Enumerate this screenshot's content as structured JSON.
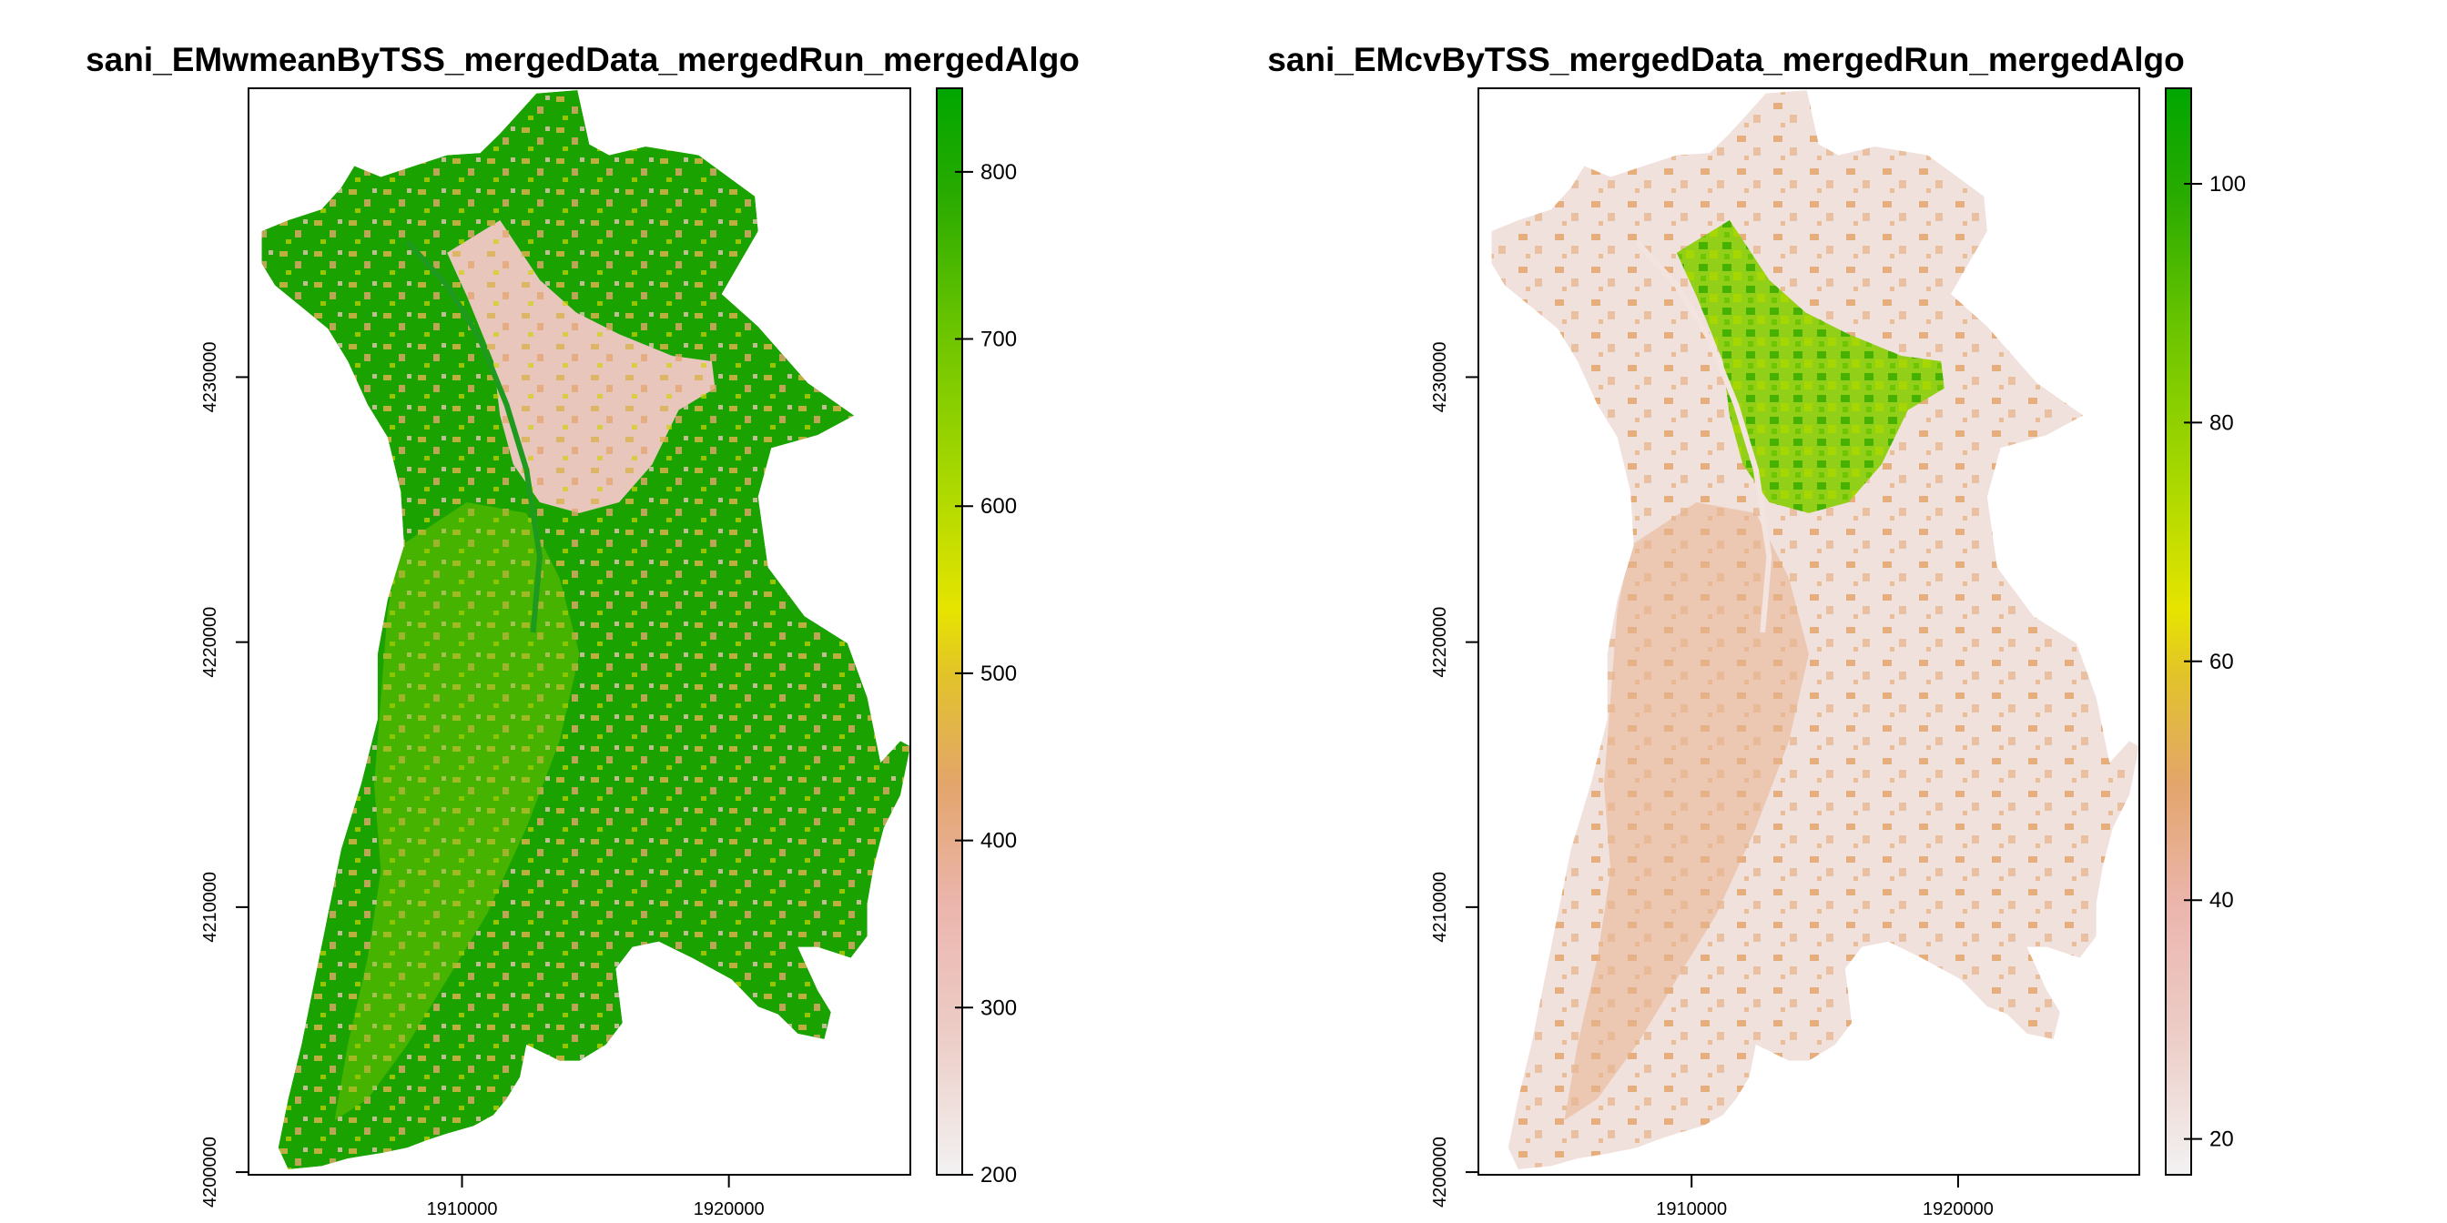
{
  "chart_data": [
    {
      "type": "heatmap",
      "title": "sani_EMwmeanByTSS_mergedData_mergedRun_mergedAlgo",
      "xlabel": "",
      "ylabel": "",
      "x_ticks": [
        1910000,
        1920000
      ],
      "x_tick_labels": [
        "1910000",
        "1920000"
      ],
      "y_ticks": [
        4200000,
        4210000,
        4220000,
        4230000
      ],
      "y_tick_labels": [
        "4200000",
        "4210000",
        "4220000",
        "4230000"
      ],
      "xlim": [
        1902000,
        1926800
      ],
      "ylim": [
        4199900,
        4240900
      ],
      "legend": {
        "placement": "right",
        "range": [
          200,
          850
        ],
        "ticks": [
          200,
          300,
          400,
          500,
          600,
          700,
          800
        ],
        "tick_labels": [
          "200",
          "300",
          "400",
          "500",
          "600",
          "700",
          "800"
        ],
        "colors": [
          "#f2f2f2",
          "#ebb5ad",
          "#e3a56b",
          "#e2c32a",
          "#e6e400",
          "#a8d800",
          "#6ac400",
          "#2aab00",
          "#00a600"
        ]
      },
      "region_fill": "#1aa300"
    },
    {
      "type": "heatmap",
      "title": "sani_EMcvByTSS_mergedData_mergedRun_mergedAlgo",
      "xlabel": "",
      "ylabel": "",
      "x_ticks": [
        1910000,
        1920000
      ],
      "x_tick_labels": [
        "1910000",
        "1920000"
      ],
      "y_ticks": [
        4200000,
        4210000,
        4220000,
        4230000
      ],
      "y_tick_labels": [
        "4200000",
        "4210000",
        "4220000",
        "4230000"
      ],
      "xlim": [
        1902000,
        1926800
      ],
      "ylim": [
        4199900,
        4240900
      ],
      "legend": {
        "placement": "right",
        "range": [
          17,
          108
        ],
        "ticks": [
          20,
          40,
          60,
          80,
          100
        ],
        "tick_labels": [
          "20",
          "40",
          "60",
          "80",
          "100"
        ],
        "colors": [
          "#f2f2f2",
          "#ebb5ad",
          "#e3a56b",
          "#e2c32a",
          "#e6e400",
          "#a8d800",
          "#6ac400",
          "#2aab00",
          "#00a600"
        ]
      },
      "region_fill": "#f1e1dd"
    }
  ]
}
